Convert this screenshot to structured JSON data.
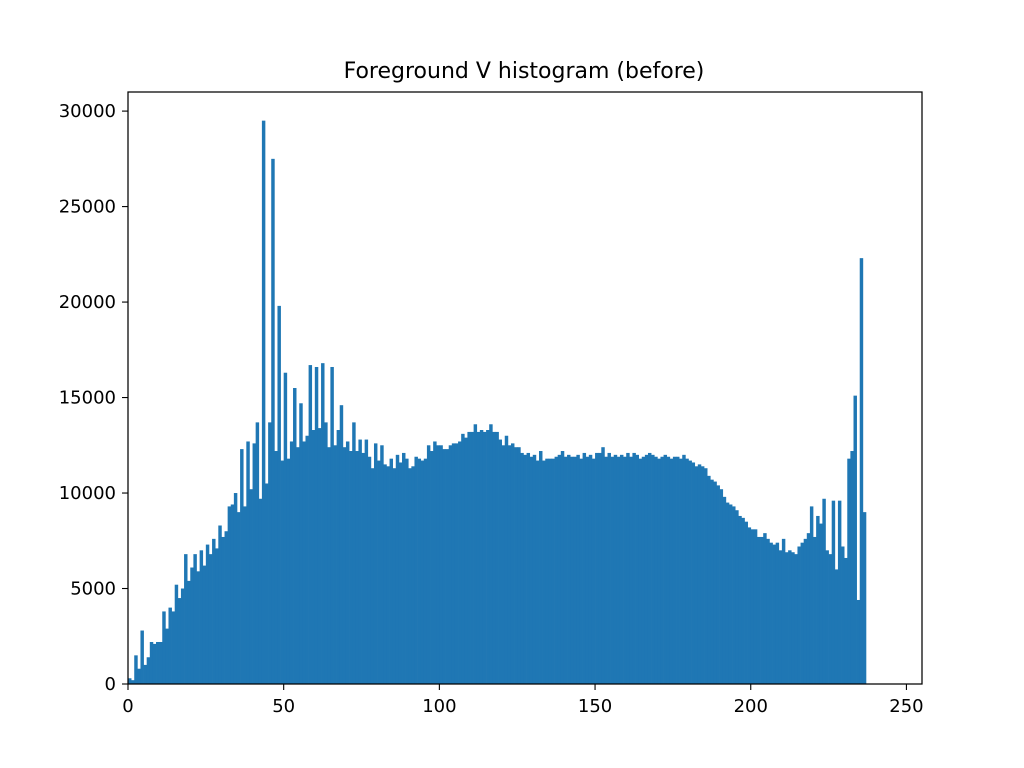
{
  "chart_data": {
    "type": "bar",
    "title": "Foreground V histogram (before)",
    "xlabel": "",
    "ylabel": "",
    "xlim": [
      0,
      255
    ],
    "ylim": [
      0,
      31000
    ],
    "x_ticks": [
      0,
      50,
      100,
      150,
      200,
      250
    ],
    "y_ticks": [
      0,
      5000,
      10000,
      15000,
      20000,
      25000,
      30000
    ],
    "grid": false,
    "bar_color": "#1f77b4",
    "bin_width": 1,
    "bin_start": 0,
    "values": [
      300,
      200,
      1500,
      800,
      2800,
      1000,
      1400,
      2200,
      2100,
      2200,
      2200,
      3800,
      2900,
      4000,
      3800,
      5200,
      4500,
      5000,
      6800,
      5400,
      6100,
      6800,
      5900,
      7000,
      6200,
      7300,
      6800,
      7600,
      7100,
      8300,
      7700,
      8000,
      9300,
      9400,
      10000,
      9000,
      12300,
      9300,
      12700,
      10200,
      12600,
      13700,
      9700,
      29500,
      10500,
      13700,
      27500,
      12200,
      19800,
      11700,
      16300,
      11800,
      12700,
      15500,
      12400,
      14700,
      12700,
      13000,
      16700,
      13300,
      16600,
      13400,
      16800,
      13700,
      12400,
      16600,
      12500,
      13300,
      14600,
      12400,
      12700,
      12200,
      13700,
      12200,
      12800,
      12100,
      12800,
      11900,
      11300,
      12600,
      11700,
      12500,
      11500,
      11400,
      11800,
      11300,
      12000,
      11600,
      12100,
      11800,
      11300,
      11400,
      11900,
      11800,
      11700,
      11800,
      12500,
      12200,
      12700,
      12500,
      12500,
      12300,
      12300,
      12500,
      12600,
      12600,
      12700,
      13100,
      12900,
      13200,
      13200,
      13600,
      13200,
      13300,
      13200,
      13300,
      13600,
      13200,
      13200,
      12800,
      12500,
      13000,
      12500,
      12600,
      12400,
      12400,
      12100,
      12000,
      12100,
      11900,
      12000,
      11700,
      12200,
      11700,
      11800,
      11800,
      11800,
      11900,
      12000,
      12200,
      11900,
      12000,
      11900,
      11900,
      12000,
      11800,
      12100,
      11900,
      12000,
      11800,
      12100,
      12100,
      12400,
      11900,
      12100,
      11900,
      12000,
      11900,
      12000,
      11900,
      12100,
      11900,
      12100,
      12000,
      11800,
      11900,
      12000,
      12100,
      12000,
      11900,
      11800,
      11900,
      12000,
      11900,
      11800,
      11900,
      11900,
      11800,
      12000,
      11800,
      11700,
      11600,
      11400,
      11500,
      11400,
      11300,
      10900,
      10700,
      10600,
      10400,
      10200,
      9800,
      9500,
      9400,
      9300,
      9100,
      8800,
      8700,
      8500,
      8200,
      8100,
      8100,
      7700,
      7700,
      7900,
      7600,
      7400,
      7300,
      7400,
      7000,
      7600,
      6900,
      7000,
      6900,
      6800,
      7200,
      7400,
      7600,
      7900,
      9300,
      7700,
      8800,
      8400,
      9700,
      7000,
      6800,
      9600,
      6000,
      9600,
      7200,
      6600,
      11800,
      12200,
      15100,
      4400,
      22300,
      9000
    ]
  }
}
